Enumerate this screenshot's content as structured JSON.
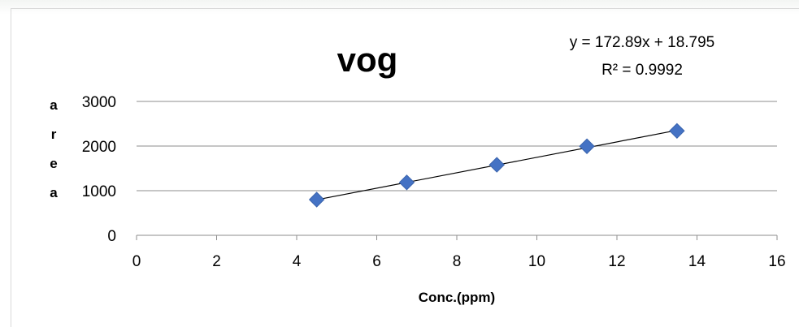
{
  "chart_data": {
    "type": "scatter",
    "title": "vog",
    "xlabel": "Conc.(ppm)",
    "ylabel": "area",
    "xlim": [
      0,
      16
    ],
    "ylim": [
      0,
      3000
    ],
    "x_ticks": [
      "0",
      "2",
      "4",
      "6",
      "8",
      "10",
      "12",
      "14",
      "16"
    ],
    "y_ticks": [
      "0",
      "1000",
      "2000",
      "3000"
    ],
    "grid": "horizontal",
    "series": [
      {
        "marker": "diamond",
        "color": "#4472c4",
        "points": [
          {
            "x": 4.5,
            "y": 800
          },
          {
            "x": 6.75,
            "y": 1185
          },
          {
            "x": 9.0,
            "y": 1580
          },
          {
            "x": 11.25,
            "y": 1995
          },
          {
            "x": 13.5,
            "y": 2340
          }
        ]
      }
    ],
    "trendline": {
      "type": "linear",
      "slope": 172.89,
      "intercept": 18.795,
      "x_range": [
        4.5,
        13.5
      ],
      "color": "#000000",
      "equation": "y = 172.89x + 18.795",
      "r_squared": "R² = 0.9992"
    }
  }
}
